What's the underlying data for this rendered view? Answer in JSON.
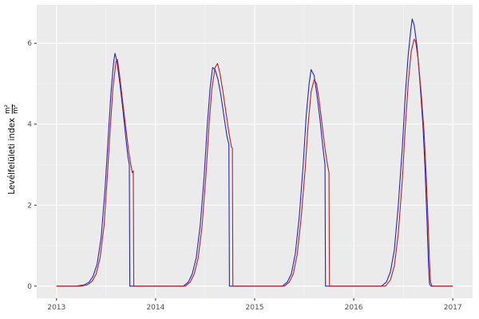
{
  "figure": {
    "background": "#ffffff",
    "panel_background": "#ebebeb",
    "grid_major_color": "#ffffff",
    "grid_minor_color": "#f6f6f6",
    "tick_mark_color": "#333333",
    "tick_label_color": "#4d4d4d"
  },
  "ylabel": {
    "text": "Levélfelületi index",
    "frac_num": "m²",
    "frac_den": "m²"
  },
  "chart_data": {
    "type": "line",
    "title": "",
    "xlabel": "",
    "ylabel": "Levélfelületi index m²/m²",
    "x_domain": [
      2012.8,
      2017.2
    ],
    "y_domain": [
      -0.3,
      6.95
    ],
    "x_ticks": [
      2013,
      2014,
      2015,
      2016,
      2017
    ],
    "y_ticks": [
      0,
      2,
      4,
      6
    ],
    "x_minor": [
      2013.5,
      2014.5,
      2015.5,
      2016.5
    ],
    "y_minor": [
      1,
      3,
      5
    ],
    "grid": true,
    "legend": "none",
    "series": [
      {
        "name": "blue-series",
        "color": "#2222cc",
        "points": [
          [
            2013.0,
            0
          ],
          [
            2013.2,
            0
          ],
          [
            2013.28,
            0.03
          ],
          [
            2013.33,
            0.1
          ],
          [
            2013.37,
            0.25
          ],
          [
            2013.41,
            0.55
          ],
          [
            2013.45,
            1.2
          ],
          [
            2013.49,
            2.4
          ],
          [
            2013.52,
            3.6
          ],
          [
            2013.55,
            4.8
          ],
          [
            2013.575,
            5.5
          ],
          [
            2013.59,
            5.75
          ],
          [
            2013.61,
            5.55
          ],
          [
            2013.64,
            5.0
          ],
          [
            2013.67,
            4.35
          ],
          [
            2013.7,
            3.65
          ],
          [
            2013.72,
            3.2
          ],
          [
            2013.735,
            3.0
          ],
          [
            2013.74,
            0
          ],
          [
            2014.28,
            0
          ],
          [
            2014.33,
            0.1
          ],
          [
            2014.37,
            0.3
          ],
          [
            2014.41,
            0.7
          ],
          [
            2014.45,
            1.5
          ],
          [
            2014.49,
            2.7
          ],
          [
            2014.52,
            3.9
          ],
          [
            2014.55,
            4.9
          ],
          [
            2014.575,
            5.4
          ],
          [
            2014.6,
            5.35
          ],
          [
            2014.63,
            5.1
          ],
          [
            2014.66,
            4.7
          ],
          [
            2014.69,
            4.2
          ],
          [
            2014.72,
            3.7
          ],
          [
            2014.74,
            3.5
          ],
          [
            2014.745,
            0
          ],
          [
            2015.28,
            0
          ],
          [
            2015.33,
            0.1
          ],
          [
            2015.37,
            0.3
          ],
          [
            2015.41,
            0.8
          ],
          [
            2015.45,
            1.7
          ],
          [
            2015.49,
            3.0
          ],
          [
            2015.52,
            4.2
          ],
          [
            2015.55,
            5.0
          ],
          [
            2015.57,
            5.35
          ],
          [
            2015.6,
            5.2
          ],
          [
            2015.63,
            4.7
          ],
          [
            2015.66,
            4.1
          ],
          [
            2015.69,
            3.4
          ],
          [
            2015.71,
            3.0
          ],
          [
            2015.715,
            0
          ],
          [
            2016.28,
            0
          ],
          [
            2016.33,
            0.1
          ],
          [
            2016.37,
            0.35
          ],
          [
            2016.41,
            0.9
          ],
          [
            2016.45,
            2.0
          ],
          [
            2016.49,
            3.4
          ],
          [
            2016.52,
            4.7
          ],
          [
            2016.55,
            5.7
          ],
          [
            2016.575,
            6.3
          ],
          [
            2016.59,
            6.6
          ],
          [
            2016.61,
            6.45
          ],
          [
            2016.64,
            5.9
          ],
          [
            2016.67,
            5.0
          ],
          [
            2016.7,
            3.9
          ],
          [
            2016.72,
            2.9
          ],
          [
            2016.74,
            1.6
          ],
          [
            2016.755,
            0.5
          ],
          [
            2016.765,
            0.05
          ],
          [
            2016.78,
            0
          ],
          [
            2017.0,
            0
          ]
        ]
      },
      {
        "name": "red-series",
        "color": "#b22222",
        "points": [
          [
            2013.0,
            0
          ],
          [
            2013.24,
            0
          ],
          [
            2013.31,
            0.03
          ],
          [
            2013.36,
            0.12
          ],
          [
            2013.4,
            0.3
          ],
          [
            2013.44,
            0.7
          ],
          [
            2013.48,
            1.5
          ],
          [
            2013.51,
            2.6
          ],
          [
            2013.54,
            3.8
          ],
          [
            2013.57,
            4.9
          ],
          [
            2013.6,
            5.55
          ],
          [
            2013.615,
            5.6
          ],
          [
            2013.64,
            5.15
          ],
          [
            2013.67,
            4.5
          ],
          [
            2013.7,
            3.9
          ],
          [
            2013.73,
            3.3
          ],
          [
            2013.75,
            3.0
          ],
          [
            2013.765,
            2.8
          ],
          [
            2013.775,
            2.85
          ],
          [
            2013.78,
            0
          ],
          [
            2014.3,
            0
          ],
          [
            2014.35,
            0.1
          ],
          [
            2014.39,
            0.3
          ],
          [
            2014.43,
            0.7
          ],
          [
            2014.47,
            1.5
          ],
          [
            2014.51,
            2.8
          ],
          [
            2014.54,
            4.0
          ],
          [
            2014.57,
            4.9
          ],
          [
            2014.6,
            5.4
          ],
          [
            2014.625,
            5.5
          ],
          [
            2014.65,
            5.25
          ],
          [
            2014.68,
            4.8
          ],
          [
            2014.71,
            4.3
          ],
          [
            2014.74,
            3.8
          ],
          [
            2014.765,
            3.45
          ],
          [
            2014.775,
            3.4
          ],
          [
            2014.78,
            0
          ],
          [
            2015.3,
            0
          ],
          [
            2015.35,
            0.1
          ],
          [
            2015.39,
            0.3
          ],
          [
            2015.43,
            0.8
          ],
          [
            2015.47,
            1.7
          ],
          [
            2015.51,
            2.9
          ],
          [
            2015.54,
            4.0
          ],
          [
            2015.57,
            4.8
          ],
          [
            2015.6,
            5.1
          ],
          [
            2015.625,
            5.0
          ],
          [
            2015.65,
            4.6
          ],
          [
            2015.68,
            4.0
          ],
          [
            2015.71,
            3.4
          ],
          [
            2015.735,
            3.0
          ],
          [
            2015.75,
            2.8
          ],
          [
            2015.755,
            0
          ],
          [
            2016.32,
            0
          ],
          [
            2016.37,
            0.15
          ],
          [
            2016.41,
            0.5
          ],
          [
            2016.45,
            1.3
          ],
          [
            2016.49,
            2.6
          ],
          [
            2016.52,
            3.9
          ],
          [
            2016.55,
            5.0
          ],
          [
            2016.58,
            5.8
          ],
          [
            2016.61,
            6.1
          ],
          [
            2016.625,
            6.05
          ],
          [
            2016.65,
            5.6
          ],
          [
            2016.68,
            4.8
          ],
          [
            2016.71,
            3.8
          ],
          [
            2016.73,
            2.8
          ],
          [
            2016.75,
            1.6
          ],
          [
            2016.765,
            0.6
          ],
          [
            2016.775,
            0.1
          ],
          [
            2016.79,
            0
          ],
          [
            2017.0,
            0
          ]
        ]
      }
    ]
  }
}
